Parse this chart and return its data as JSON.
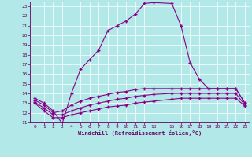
{
  "xlabel": "Windchill (Refroidissement éolien,°C)",
  "bg_color": "#b2e8e8",
  "grid_color": "#ffffff",
  "line_color": "#880088",
  "xlim": [
    -0.5,
    23.5
  ],
  "ylim": [
    11,
    23.5
  ],
  "xticks": [
    0,
    1,
    2,
    3,
    4,
    5,
    6,
    7,
    8,
    9,
    10,
    11,
    12,
    13,
    15,
    16,
    17,
    18,
    19,
    20,
    21,
    22,
    23
  ],
  "yticks": [
    11,
    12,
    13,
    14,
    15,
    16,
    17,
    18,
    19,
    20,
    21,
    22,
    23
  ],
  "line1_x": [
    0,
    1,
    2,
    3,
    4,
    5,
    6,
    7,
    8,
    9,
    10,
    11,
    12,
    13,
    15,
    16,
    17,
    18,
    19,
    20,
    21,
    22,
    23
  ],
  "line1_y": [
    13.5,
    13.0,
    12.2,
    10.9,
    14.0,
    16.5,
    17.5,
    18.5,
    20.5,
    21.0,
    21.5,
    22.2,
    23.3,
    23.4,
    23.3,
    21.0,
    17.2,
    15.5,
    14.5,
    14.5,
    14.5,
    14.5,
    13.0
  ],
  "line2_x": [
    0,
    1,
    2,
    3,
    4,
    5,
    6,
    7,
    8,
    9,
    10,
    11,
    12,
    13,
    15,
    16,
    17,
    18,
    19,
    20,
    21,
    22,
    23
  ],
  "line2_y": [
    13.3,
    12.8,
    12.0,
    12.2,
    12.8,
    13.2,
    13.5,
    13.7,
    13.9,
    14.1,
    14.2,
    14.4,
    14.5,
    14.5,
    14.5,
    14.5,
    14.5,
    14.5,
    14.5,
    14.5,
    14.5,
    14.5,
    13.0
  ],
  "line3_x": [
    0,
    1,
    2,
    3,
    4,
    5,
    6,
    7,
    8,
    9,
    10,
    11,
    12,
    13,
    15,
    16,
    17,
    18,
    19,
    20,
    21,
    22,
    23
  ],
  "line3_y": [
    13.1,
    12.5,
    11.8,
    11.8,
    12.2,
    12.5,
    12.8,
    13.0,
    13.2,
    13.4,
    13.5,
    13.7,
    13.8,
    13.9,
    14.0,
    14.0,
    14.0,
    14.0,
    14.0,
    14.0,
    14.0,
    14.0,
    12.8
  ],
  "line4_x": [
    0,
    1,
    2,
    3,
    4,
    5,
    6,
    7,
    8,
    9,
    10,
    11,
    12,
    13,
    15,
    16,
    17,
    18,
    19,
    20,
    21,
    22,
    23
  ],
  "line4_y": [
    13.0,
    12.2,
    11.5,
    11.5,
    11.8,
    12.0,
    12.2,
    12.4,
    12.6,
    12.7,
    12.8,
    13.0,
    13.1,
    13.2,
    13.4,
    13.5,
    13.5,
    13.5,
    13.5,
    13.5,
    13.5,
    13.5,
    12.7
  ]
}
